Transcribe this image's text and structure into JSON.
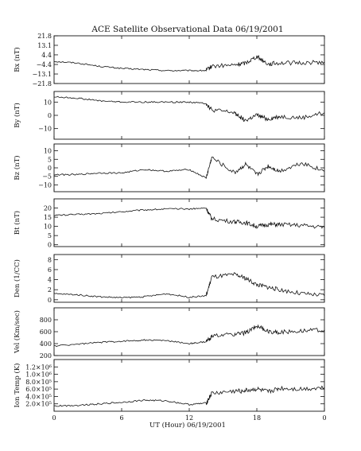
{
  "chart_data": {
    "type": "line",
    "title": "ACE Satellite Observational Data  06/19/2001",
    "xlabel": "UT (Hour)  06/19/2001",
    "x_ticks": [
      "0",
      "6",
      "12",
      "18",
      "0"
    ],
    "x_range": [
      0,
      24
    ],
    "panels": [
      {
        "ylabel": "Bx (nT)",
        "ylim": [
          -21.8,
          21.8
        ],
        "y_ticks": [
          21.8,
          13.1,
          4.4,
          -4.4,
          -13.1,
          -21.8
        ],
        "y_tick_labels": [
          "21.8",
          "13.1",
          "4.4",
          "−4.4",
          "−13.1",
          "−21.8"
        ],
        "x": [
          0,
          2,
          4,
          6,
          8,
          10,
          12,
          13.5,
          14,
          16,
          17,
          18,
          19,
          20,
          22,
          24
        ],
        "y": [
          -1.5,
          -3,
          -6,
          -8,
          -9,
          -10,
          -10,
          -10,
          -6,
          -5,
          -3,
          3,
          -4,
          -3,
          -3,
          -2
        ]
      },
      {
        "ylabel": "By (nT)",
        "ylim": [
          -18,
          18
        ],
        "y_ticks": [
          10,
          0,
          -10
        ],
        "y_tick_labels": [
          "10",
          "0",
          "−10"
        ],
        "x": [
          0,
          2,
          4,
          6,
          8,
          10,
          12,
          13.5,
          14,
          16,
          17,
          18,
          19,
          20,
          22,
          24
        ],
        "y": [
          14,
          13,
          11,
          10,
          10,
          10,
          10,
          9,
          4,
          2,
          -4,
          0,
          -3,
          -1,
          -2,
          2
        ]
      },
      {
        "ylabel": "Bz (nT)",
        "ylim": [
          -14,
          14
        ],
        "y_ticks": [
          10,
          5,
          0,
          -5,
          -10
        ],
        "y_tick_labels": [
          "10",
          "5",
          "0",
          "−5",
          "−10"
        ],
        "x": [
          0,
          2,
          4,
          6,
          8,
          10,
          12,
          13.5,
          14,
          16,
          17,
          18,
          19,
          20,
          22,
          24
        ],
        "y": [
          -4,
          -4,
          -3,
          -3,
          -1,
          -2,
          -1,
          -6,
          6,
          -3,
          2,
          -4,
          1,
          -2,
          3,
          -2
        ]
      },
      {
        "ylabel": "Bt (nT)",
        "ylim": [
          -1,
          25
        ],
        "y_ticks": [
          20,
          15,
          10,
          5,
          0
        ],
        "y_tick_labels": [
          "20",
          "15",
          "10",
          "5",
          "0"
        ],
        "x": [
          0,
          2,
          4,
          6,
          8,
          10,
          12,
          13.5,
          14,
          16,
          17,
          18,
          19,
          20,
          22,
          24
        ],
        "y": [
          16,
          16.5,
          17,
          18,
          19,
          19.5,
          19.5,
          20,
          14,
          12.5,
          12,
          10,
          11,
          11,
          10.5,
          9.5
        ]
      },
      {
        "ylabel": "Den (1/CC)",
        "ylim": [
          -0.5,
          9
        ],
        "y_ticks": [
          8,
          6,
          4,
          2,
          0
        ],
        "y_tick_labels": [
          "8",
          "6",
          "4",
          "2",
          "0"
        ],
        "x": [
          0,
          2,
          4,
          6,
          8,
          10,
          12,
          13.5,
          14,
          16,
          17,
          18,
          19,
          20,
          22,
          24
        ],
        "y": [
          1.2,
          1,
          0.6,
          0.4,
          0.6,
          1.2,
          0.5,
          0.8,
          4.5,
          5,
          4.3,
          3,
          2.5,
          2,
          1.2,
          0.8
        ]
      },
      {
        "ylabel": "Vel (Km/sec)",
        "ylim": [
          200,
          1000
        ],
        "y_ticks": [
          800,
          600,
          400,
          200
        ],
        "y_tick_labels": [
          "800",
          "600",
          "400",
          "200"
        ],
        "x": [
          0,
          2,
          4,
          6,
          8,
          10,
          12,
          13.5,
          14,
          16,
          17,
          18,
          19,
          20,
          22,
          24
        ],
        "y": [
          360,
          390,
          420,
          440,
          460,
          450,
          400,
          430,
          520,
          560,
          580,
          700,
          600,
          590,
          620,
          630
        ]
      },
      {
        "ylabel": "Ion Temp (K)",
        "ylim": [
          0,
          1400000
        ],
        "y_ticks": [
          1200000,
          1000000,
          800000,
          600000,
          400000,
          200000
        ],
        "y_tick_labels": [
          "1.2×10⁶",
          "1.0×10⁶",
          "8.0×10⁵",
          "6.0×10⁵",
          "4.0×10⁵",
          "2.0×10⁵"
        ],
        "x": [
          0,
          2,
          4,
          6,
          8,
          10,
          12,
          13.5,
          14,
          16,
          17,
          18,
          19,
          20,
          22,
          24
        ],
        "y": [
          140000,
          160000,
          200000,
          240000,
          300000,
          280000,
          180000,
          220000,
          480000,
          540000,
          560000,
          600000,
          520000,
          620000,
          600000,
          640000
        ]
      }
    ]
  }
}
